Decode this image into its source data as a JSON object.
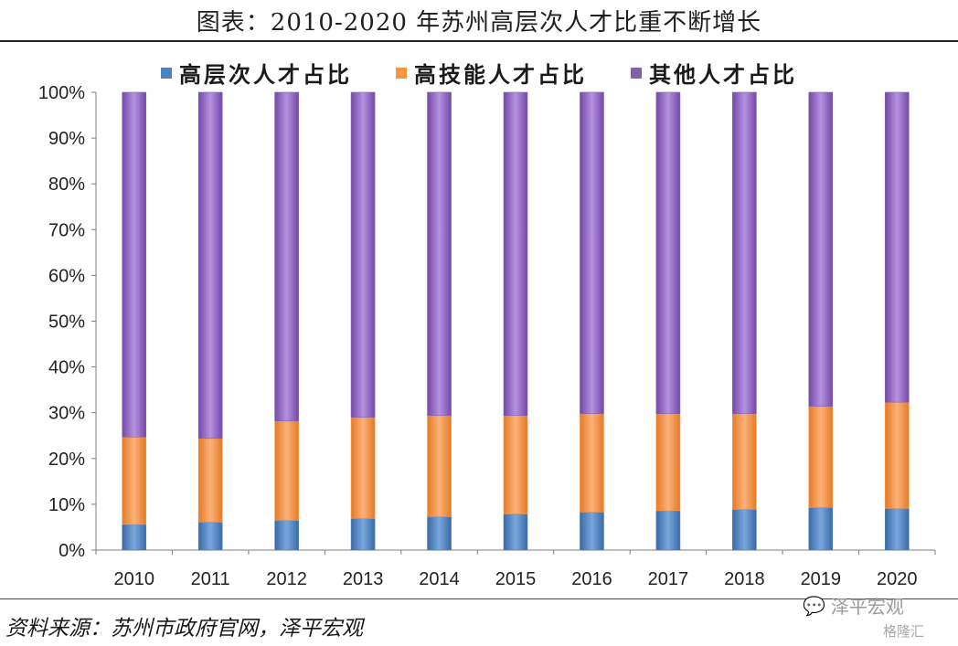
{
  "title": "图表：2010-2020 年苏州高层次人才比重不断增长",
  "source": "资料来源：苏州市政府官网，泽平宏观",
  "watermarks": {
    "wechat": "泽平宏观",
    "gelonghui": "格隆汇"
  },
  "colors": {
    "series1": "#4f81bd",
    "series2": "#f79646",
    "series3": "#8064a2",
    "axis": "#7f7f7f"
  },
  "chart_data": {
    "type": "bar",
    "stacked": true,
    "title": "",
    "xlabel": "",
    "ylabel": "",
    "ylim": [
      0,
      100
    ],
    "yticks": [
      "0%",
      "10%",
      "20%",
      "30%",
      "40%",
      "50%",
      "60%",
      "70%",
      "80%",
      "90%",
      "100%"
    ],
    "categories": [
      "2010",
      "2011",
      "2012",
      "2013",
      "2014",
      "2015",
      "2016",
      "2017",
      "2018",
      "2019",
      "2020"
    ],
    "legend_position": "top",
    "grid": false,
    "series": [
      {
        "name": "高层次人才占比",
        "values": [
          5.6,
          6.1,
          6.5,
          6.9,
          7.3,
          7.9,
          8.3,
          8.6,
          8.9,
          9.3,
          9.1
        ]
      },
      {
        "name": "高技能人才占比",
        "values": [
          19.1,
          18.3,
          21.7,
          22.1,
          22.1,
          21.5,
          21.5,
          21.2,
          20.9,
          22.1,
          23.2
        ]
      },
      {
        "name": "其他人才占比",
        "values": [
          75.3,
          75.6,
          71.8,
          71.0,
          70.6,
          70.6,
          70.2,
          70.2,
          70.2,
          68.6,
          67.7
        ]
      }
    ]
  }
}
